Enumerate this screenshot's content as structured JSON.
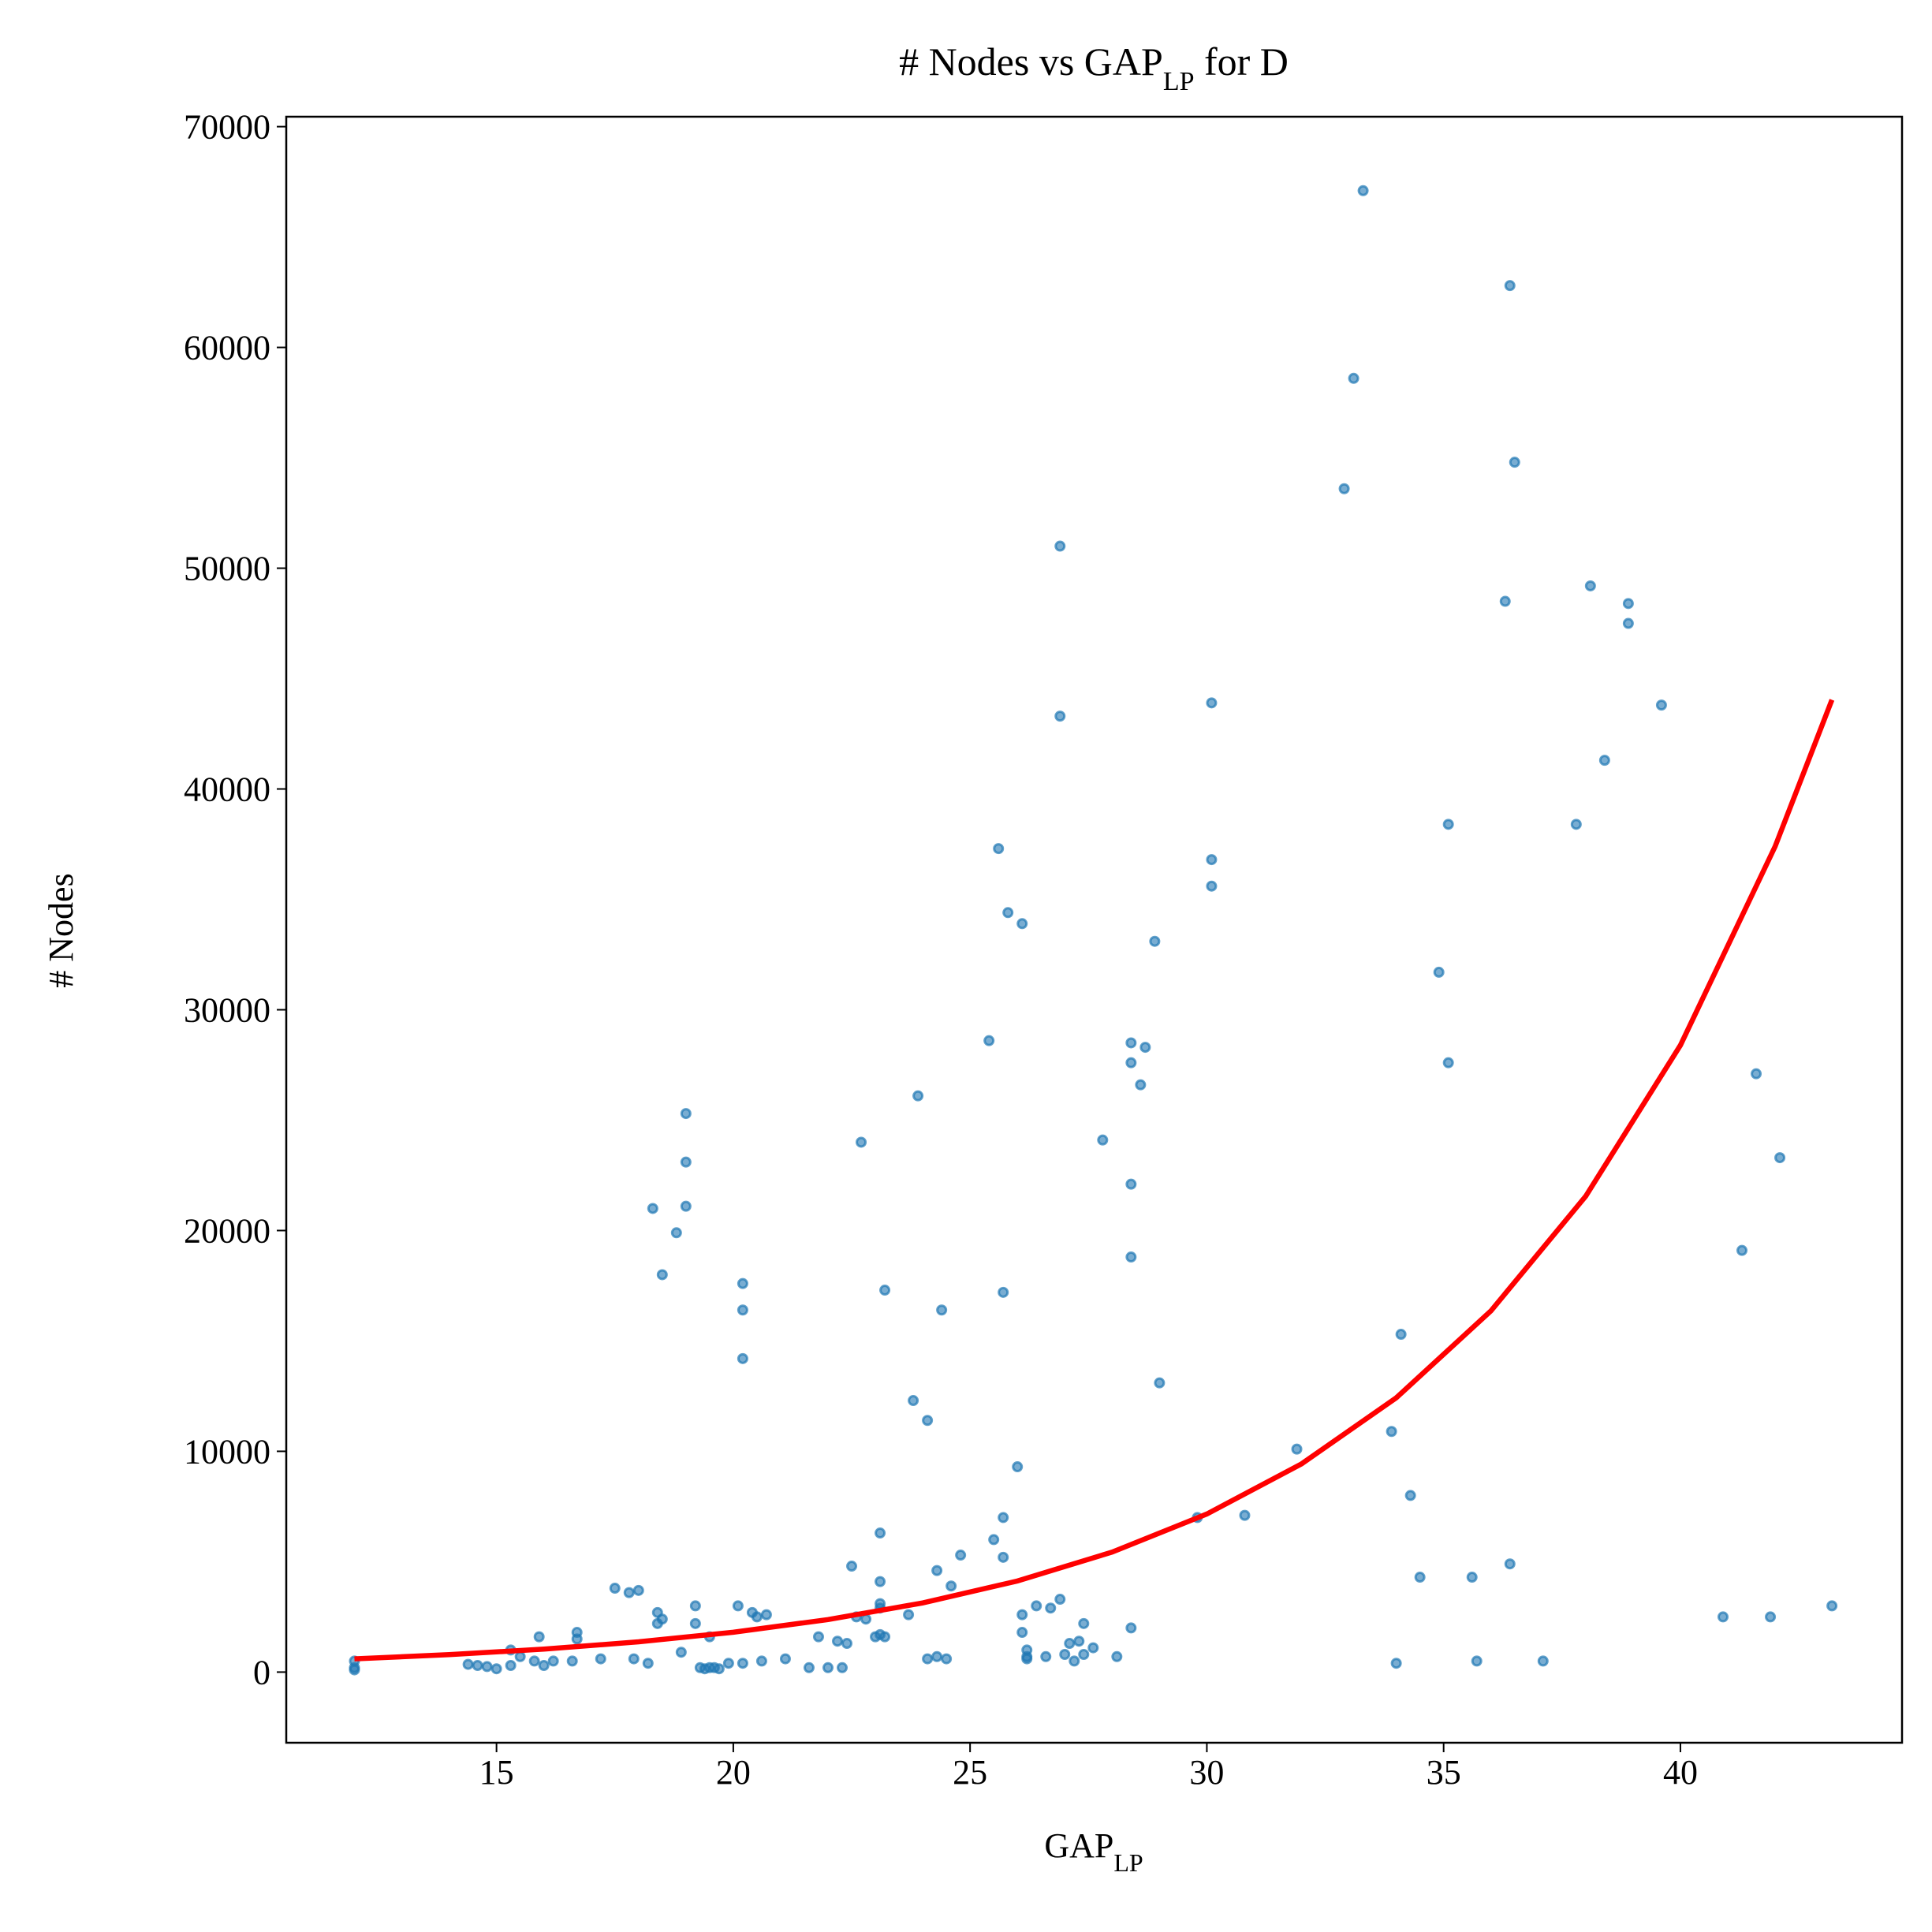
{
  "chart_data": {
    "type": "scatter",
    "title": [
      "# Nodes vs GAP",
      "LP",
      " for D"
    ],
    "x_label": [
      "GAP",
      "LP"
    ],
    "y_label": "# Nodes",
    "xlim": [
      10.56,
      44.68
    ],
    "ylim": [
      -3200,
      70450
    ],
    "xticks": [
      15,
      20,
      25,
      30,
      35,
      40
    ],
    "yticks": [
      0,
      10000,
      20000,
      30000,
      40000,
      50000,
      60000,
      70000
    ],
    "series": [
      {
        "color": "#1f77b4",
        "x": [
          12.0,
          12.0,
          12.0,
          14.4,
          14.6,
          14.8,
          15.0,
          15.3,
          15.3,
          15.5,
          15.8,
          15.9,
          16.0,
          16.2,
          16.6,
          16.7,
          16.7,
          17.2,
          17.5,
          17.8,
          17.9,
          18.0,
          18.2,
          18.3,
          18.4,
          18.4,
          18.5,
          18.5,
          18.8,
          18.9,
          19.0,
          19.0,
          19.0,
          19.2,
          19.2,
          19.3,
          19.4,
          19.5,
          19.5,
          19.6,
          19.7,
          19.9,
          20.1,
          20.2,
          20.2,
          20.2,
          20.2,
          20.4,
          20.5,
          20.7,
          20.6,
          21.1,
          21.6,
          21.8,
          22.0,
          22.2,
          22.3,
          22.4,
          22.5,
          22.6,
          22.7,
          22.8,
          23.0,
          23.1,
          23.1,
          23.1,
          23.1,
          23.1,
          23.2,
          23.2,
          23.7,
          23.8,
          23.9,
          24.1,
          24.1,
          24.3,
          24.3,
          24.4,
          24.5,
          24.6,
          24.8,
          25.4,
          25.5,
          25.6,
          25.7,
          25.7,
          25.7,
          25.8,
          26.0,
          26.1,
          26.1,
          26.1,
          26.2,
          26.2,
          26.2,
          26.4,
          26.6,
          26.7,
          26.9,
          26.9,
          26.9,
          27.0,
          27.1,
          27.2,
          27.3,
          27.4,
          27.4,
          27.6,
          27.8,
          28.1,
          28.4,
          28.4,
          28.4,
          28.4,
          28.4,
          28.6,
          28.7,
          28.9,
          29.0,
          29.8,
          30.1,
          30.1,
          30.1,
          30.8,
          31.9,
          32.9,
          33.1,
          33.3,
          33.9,
          34.0,
          34.1,
          34.3,
          34.5,
          34.9,
          35.1,
          35.1,
          35.6,
          35.7,
          36.3,
          36.4,
          36.4,
          36.5,
          37.1,
          37.8,
          38.1,
          38.4,
          38.9,
          38.9,
          39.6,
          40.9,
          41.3,
          41.6,
          41.9,
          42.1,
          43.2
        ],
        "values": [
          500,
          100,
          200,
          350,
          300,
          250,
          150,
          1000,
          300,
          700,
          500,
          1600,
          300,
          500,
          500,
          1500,
          1800,
          600,
          3800,
          3600,
          600,
          3700,
          400,
          21000,
          2700,
          2200,
          2400,
          18000,
          19900,
          900,
          21100,
          23100,
          25300,
          3000,
          2200,
          200,
          150,
          1600,
          200,
          200,
          150,
          400,
          3000,
          17600,
          16400,
          14200,
          400,
          2700,
          2500,
          2600,
          500,
          600,
          200,
          1600,
          200,
          1400,
          200,
          1300,
          4800,
          2500,
          24000,
          2400,
          1600,
          1700,
          3100,
          2900,
          4100,
          6300,
          17300,
          1600,
          2600,
          12300,
          26100,
          11400,
          600,
          700,
          4600,
          16400,
          600,
          3900,
          5300,
          28600,
          6000,
          37300,
          17200,
          5200,
          7000,
          34400,
          9300,
          33900,
          2600,
          1800,
          1000,
          700,
          600,
          3000,
          700,
          2900,
          51000,
          43300,
          3300,
          800,
          1300,
          500,
          1400,
          2200,
          800,
          1100,
          24100,
          700,
          28500,
          27600,
          22100,
          18800,
          2000,
          26600,
          28300,
          33100,
          13100,
          7000,
          43900,
          36800,
          35600,
          7100,
          10100,
          53600,
          58600,
          67100,
          10900,
          400,
          15300,
          8000,
          4300,
          31700,
          38400,
          27600,
          4300,
          500,
          48500,
          62800,
          4900,
          54800,
          500,
          38400,
          49200,
          41300,
          48400,
          47500,
          43800,
          2500,
          19100,
          27100,
          2500,
          23300,
          3000
        ]
      }
    ],
    "fit": {
      "color": "#ff0000",
      "x": [
        12,
        14,
        16,
        18,
        20,
        22,
        24,
        26,
        28,
        30,
        32,
        34,
        36,
        38,
        40,
        42,
        43.2
      ],
      "values": [
        600,
        790,
        1041,
        1371,
        1806,
        2379,
        3133,
        4127,
        5436,
        7160,
        9432,
        12424,
        16364,
        21554,
        28391,
        37397,
        44040
      ]
    }
  }
}
